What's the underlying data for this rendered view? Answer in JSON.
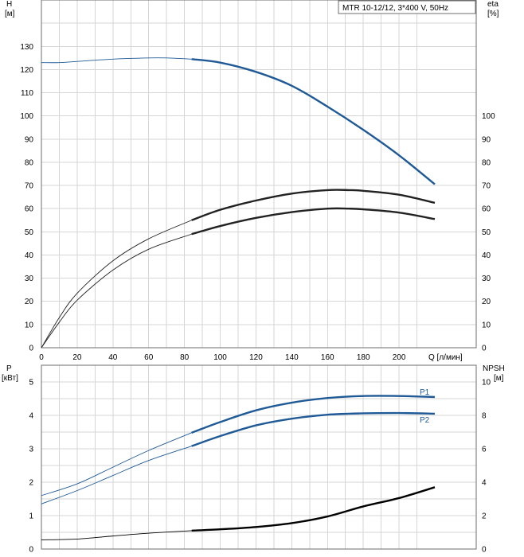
{
  "chart_data": [
    {
      "type": "line",
      "legend_text": "MTR 10-12/12, 3*400 V, 50Hz",
      "ylabel": "H",
      "yunit": "[м]",
      "y2label": "eta",
      "y2unit": "[%]",
      "xlabel": "Q [л/мин]",
      "xlim": [
        0,
        220
      ],
      "ylim": [
        0,
        150
      ],
      "y2lim": [
        0,
        150
      ],
      "x_ticks": [
        "0",
        "20",
        "40",
        "60",
        "80",
        "100",
        "120",
        "140",
        "160",
        "180",
        "200"
      ],
      "y_ticks": [
        "0",
        "10",
        "20",
        "30",
        "40",
        "50",
        "60",
        "70",
        "80",
        "90",
        "100",
        "110",
        "120",
        "130"
      ],
      "y2_ticks": [
        "0",
        "10",
        "20",
        "30",
        "40",
        "50",
        "60",
        "70",
        "80",
        "90",
        "100"
      ],
      "grid": true,
      "series": [
        {
          "color": "#1f5a96",
          "x": [
            0,
            10,
            20,
            40,
            60,
            70,
            84,
            100,
            120,
            140,
            160,
            180,
            200,
            220
          ],
          "y": [
            123,
            123,
            123.5,
            124.5,
            125,
            125,
            124.5,
            123,
            119,
            113,
            104,
            94,
            83,
            70.5
          ]
        },
        {
          "color": "#222222",
          "x": [
            0,
            10,
            20,
            40,
            60,
            84,
            100,
            120,
            140,
            160,
            172,
            180,
            200,
            220
          ],
          "y": [
            0,
            13,
            23.5,
            37.5,
            47,
            55,
            59.5,
            63.5,
            66.5,
            68,
            68,
            67.7,
            66,
            62.5
          ]
        },
        {
          "color": "#222222",
          "x": [
            0,
            10,
            20,
            40,
            60,
            84,
            100,
            120,
            140,
            160,
            172,
            180,
            200,
            220
          ],
          "y": [
            0,
            11,
            20.5,
            33.5,
            42.5,
            49,
            52.5,
            56,
            58.5,
            60,
            60,
            59.7,
            58.3,
            55.5
          ]
        }
      ]
    },
    {
      "type": "line",
      "ylabel": "P",
      "yunit": "[кВт]",
      "y2label": "NPSH",
      "y2unit": "[м]",
      "xlim": [
        0,
        220
      ],
      "ylim": [
        0,
        5.5
      ],
      "y2lim": [
        0,
        11
      ],
      "y_ticks": [
        "0",
        "1",
        "2",
        "3",
        "4",
        "5"
      ],
      "y2_ticks": [
        "0",
        "2",
        "4",
        "6",
        "8",
        "10"
      ],
      "grid": true,
      "series": [
        {
          "name": "P1",
          "color": "#1f5a96",
          "axis": "left",
          "x": [
            0,
            20,
            40,
            60,
            84,
            100,
            120,
            140,
            160,
            180,
            200,
            220
          ],
          "y": [
            1.6,
            1.95,
            2.45,
            2.95,
            3.48,
            3.8,
            4.15,
            4.38,
            4.52,
            4.58,
            4.58,
            4.55
          ]
        },
        {
          "name": "P2",
          "color": "#1f5a96",
          "axis": "left",
          "x": [
            0,
            20,
            40,
            60,
            84,
            100,
            120,
            140,
            160,
            180,
            200,
            220
          ],
          "y": [
            1.35,
            1.75,
            2.2,
            2.65,
            3.08,
            3.38,
            3.7,
            3.9,
            4.02,
            4.06,
            4.07,
            4.05
          ]
        },
        {
          "color": "#000000",
          "axis": "right",
          "x": [
            0,
            20,
            40,
            60,
            84,
            100,
            120,
            140,
            160,
            180,
            200,
            220
          ],
          "y": [
            0.55,
            0.6,
            0.78,
            0.95,
            1.1,
            1.18,
            1.32,
            1.55,
            1.95,
            2.55,
            3.05,
            3.7
          ]
        }
      ]
    }
  ]
}
